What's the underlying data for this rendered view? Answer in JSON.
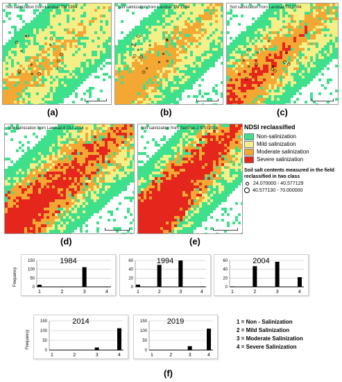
{
  "maps": [
    {
      "id": "a",
      "title": "Soil salinization from Landsat TM 1984",
      "label": "(a)",
      "severity": 0
    },
    {
      "id": "b",
      "title": "Soil salinization from Landsat TM 1994",
      "label": "(b)",
      "severity": 1
    },
    {
      "id": "c",
      "title": "Soil salinization from Landsat TM 2004",
      "label": "(c)",
      "severity": 2
    },
    {
      "id": "d",
      "title": "Soil salinization from Landsat-8 OLI 2014",
      "label": "(d)",
      "severity": 3
    },
    {
      "id": "e",
      "title": "Soil salinization from Sentinel-2 MSI 2019",
      "label": "(e)",
      "severity": 4
    }
  ],
  "legend": {
    "title": "NDSI reclassified",
    "classes": [
      {
        "label": "Non-salinization",
        "color": "#3fe08c"
      },
      {
        "label": "Mild salinization",
        "color": "#f4ef86"
      },
      {
        "label": "Moderate salinization",
        "color": "#f4a834"
      },
      {
        "label": "Severe salinization",
        "color": "#e4261c"
      }
    ],
    "salt_title": "Soil salt contents measured in the field reclassified in two class",
    "salt_classes": [
      "24.070000 - 40.577129",
      "40.577130 - 70.000000"
    ]
  },
  "chart_data": [
    {
      "type": "bar",
      "title": "1984",
      "ylabel": "Frequency",
      "categories": [
        "1",
        "2",
        "3",
        "4"
      ],
      "x": [
        1,
        2,
        3,
        4
      ],
      "values": [
        12,
        1,
        112,
        1
      ],
      "ylim": [
        0,
        150
      ],
      "yticks": [
        0,
        50,
        100,
        150
      ]
    },
    {
      "type": "bar",
      "title": "1994",
      "ylabel": "",
      "categories": [
        "1",
        "2",
        "3",
        "4"
      ],
      "x": [
        1,
        2,
        3,
        4
      ],
      "values": [
        5,
        50,
        60,
        1
      ],
      "ylim": [
        0,
        60
      ],
      "yticks": [
        0,
        20,
        40,
        60
      ]
    },
    {
      "type": "bar",
      "title": "2004",
      "ylabel": "",
      "categories": [
        "1",
        "2",
        "3",
        "4"
      ],
      "x": [
        1,
        2,
        3,
        4
      ],
      "values": [
        1,
        47,
        57,
        22
      ],
      "ylim": [
        0,
        60
      ],
      "yticks": [
        0,
        20,
        40,
        60
      ]
    },
    {
      "type": "bar",
      "title": "2014",
      "ylabel": "Frequency",
      "categories": [
        "1",
        "2",
        "3",
        "4"
      ],
      "x": [
        1,
        2,
        3,
        4
      ],
      "values": [
        1,
        1,
        13,
        112
      ],
      "ylim": [
        0,
        150
      ],
      "yticks": [
        0,
        50,
        100,
        150
      ]
    },
    {
      "type": "bar",
      "title": "2019",
      "ylabel": "",
      "categories": [
        "1",
        "2",
        "3",
        "4"
      ],
      "x": [
        1,
        2,
        3,
        4
      ],
      "values": [
        1,
        1,
        20,
        110
      ],
      "ylim": [
        0,
        150
      ],
      "yticks": [
        0,
        50,
        100,
        150
      ]
    }
  ],
  "category_legend": [
    "1 = Non - Salinization",
    "2 = Mild Salinization",
    "3 = Moderate Salinization",
    "4 = Severe Salinization"
  ],
  "f_label": "(f)"
}
